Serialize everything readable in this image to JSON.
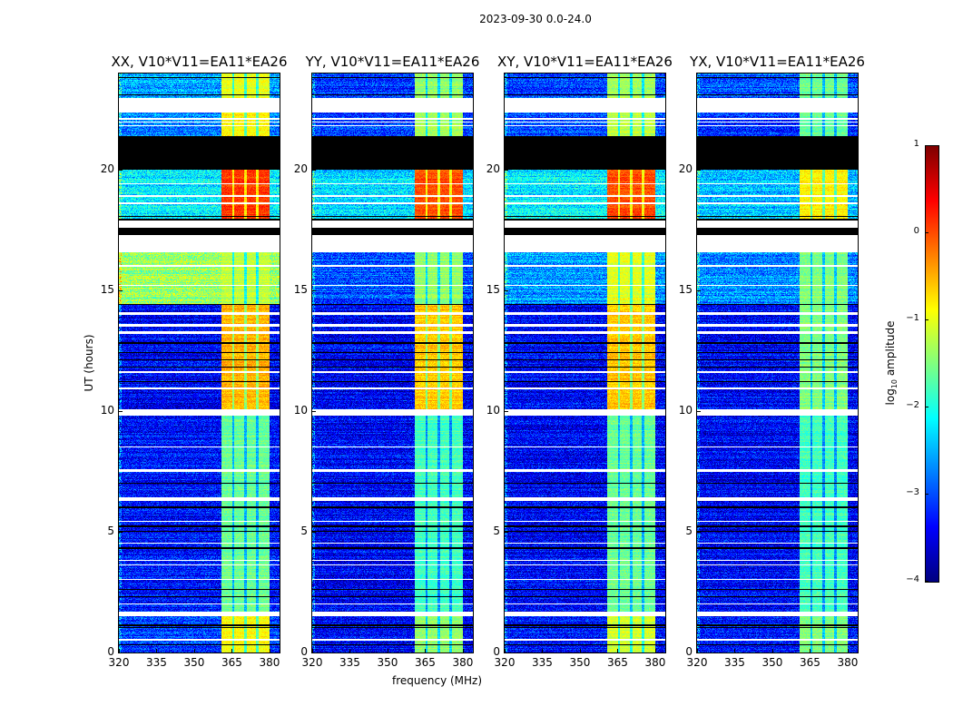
{
  "chart_data": {
    "type": "heatmap",
    "title": "2023-09-30 0.0-24.0",
    "xlabel": "frequency (MHz)",
    "ylabel": "UT (hours)",
    "colorbar_label_main": "log",
    "colorbar_label_sub": "10",
    "colorbar_label_rest": " amplitude",
    "colormap": "jet",
    "clim": [
      -4,
      1
    ],
    "colorbar_ticks": [
      -4,
      -3,
      -2,
      -1,
      0,
      1
    ],
    "colorbar_tick_labels": [
      "−4",
      "−3",
      "−2",
      "−1",
      "0",
      "1"
    ],
    "xlim": [
      320,
      384
    ],
    "ylim": [
      0,
      24
    ],
    "xticks": [
      320,
      335,
      350,
      365,
      380
    ],
    "xtick_labels": [
      "320",
      "335",
      "350",
      "365",
      "380"
    ],
    "yticks": [
      0,
      5,
      10,
      15,
      20
    ],
    "ytick_labels": [
      "0",
      "5",
      "10",
      "15",
      "20"
    ],
    "rfi_band_mhz": [
      361,
      380
    ],
    "band_dividers_mhz": [
      365.5,
      370.5,
      375.2
    ],
    "panels": [
      {
        "title": "XX, V10*V11=EA11*EA26",
        "segments": [
          {
            "ut": [
              0,
              1.5
            ],
            "background": -3.1,
            "band": -0.9
          },
          {
            "ut": [
              1.7,
              9.8
            ],
            "background": -3.3,
            "band": -1.6
          },
          {
            "ut": [
              10.1,
              14.4
            ],
            "background": -3.4,
            "band": -0.5
          },
          {
            "ut": [
              14.4,
              16.6
            ],
            "background": -1.4,
            "band": -1.2
          },
          {
            "ut": [
              18.0,
              20.0
            ],
            "background": -2.2,
            "band": 0.1
          },
          {
            "ut": [
              21.4,
              22.4
            ],
            "background": -2.7,
            "band": -0.8
          },
          {
            "ut": [
              23.0,
              24.0
            ],
            "background": -2.6,
            "band": -1.0
          }
        ]
      },
      {
        "title": "YY, V10*V11=EA11*EA26",
        "segments": [
          {
            "ut": [
              0,
              1.5
            ],
            "background": -3.4,
            "band": -1.4
          },
          {
            "ut": [
              1.7,
              9.8
            ],
            "background": -3.4,
            "band": -1.8
          },
          {
            "ut": [
              10.1,
              14.4
            ],
            "background": -3.4,
            "band": -0.6
          },
          {
            "ut": [
              14.4,
              16.6
            ],
            "background": -3.0,
            "band": -1.4
          },
          {
            "ut": [
              18.0,
              20.0
            ],
            "background": -2.3,
            "band": 0.0
          },
          {
            "ut": [
              21.4,
              22.4
            ],
            "background": -3.1,
            "band": -1.3
          },
          {
            "ut": [
              23.0,
              24.0
            ],
            "background": -3.1,
            "band": -1.4
          }
        ]
      },
      {
        "title": "XY, V10*V11=EA11*EA26",
        "segments": [
          {
            "ut": [
              0,
              1.5
            ],
            "background": -3.3,
            "band": -1.1
          },
          {
            "ut": [
              1.7,
              9.8
            ],
            "background": -3.4,
            "band": -1.6
          },
          {
            "ut": [
              10.1,
              14.4
            ],
            "background": -3.4,
            "band": -0.6
          },
          {
            "ut": [
              14.4,
              16.6
            ],
            "background": -2.6,
            "band": -1.0
          },
          {
            "ut": [
              18.0,
              20.0
            ],
            "background": -2.2,
            "band": 0.0
          },
          {
            "ut": [
              21.4,
              22.4
            ],
            "background": -3.0,
            "band": -1.2
          },
          {
            "ut": [
              23.0,
              24.0
            ],
            "background": -3.0,
            "band": -1.3
          }
        ]
      },
      {
        "title": "YX, V10*V11=EA11*EA26",
        "segments": [
          {
            "ut": [
              0,
              1.5
            ],
            "background": -3.3,
            "band": -1.5
          },
          {
            "ut": [
              1.7,
              9.8
            ],
            "background": -3.4,
            "band": -1.8
          },
          {
            "ut": [
              10.1,
              14.4
            ],
            "background": -3.4,
            "band": -1.5
          },
          {
            "ut": [
              14.4,
              16.6
            ],
            "background": -2.7,
            "band": -1.5
          },
          {
            "ut": [
              18.0,
              20.0
            ],
            "background": -2.4,
            "band": -0.8
          },
          {
            "ut": [
              21.4,
              22.4
            ],
            "background": -3.1,
            "band": -1.6
          },
          {
            "ut": [
              23.0,
              24.0
            ],
            "background": -3.0,
            "band": -1.6
          }
        ]
      }
    ],
    "blank_ut": [
      [
        1.5,
        1.7
      ],
      [
        9.8,
        10.1
      ],
      [
        16.6,
        17.3
      ],
      [
        17.6,
        17.9
      ],
      [
        22.4,
        23.0
      ],
      [
        0.5,
        0.55
      ],
      [
        2.0,
        2.05
      ],
      [
        3.0,
        3.05
      ],
      [
        3.6,
        3.65
      ],
      [
        3.8,
        3.85
      ],
      [
        4.5,
        4.55
      ],
      [
        5.4,
        5.45
      ],
      [
        6.3,
        6.45
      ],
      [
        7.5,
        7.6
      ],
      [
        8.5,
        8.55
      ],
      [
        10.9,
        11.0
      ],
      [
        11.6,
        11.65
      ],
      [
        13.2,
        13.3
      ],
      [
        13.5,
        13.6
      ],
      [
        14.0,
        14.1
      ],
      [
        15.2,
        15.25
      ],
      [
        16.0,
        16.05
      ],
      [
        18.6,
        18.65
      ],
      [
        18.9,
        18.95
      ],
      [
        19.4,
        19.45
      ],
      [
        21.8,
        21.85
      ],
      [
        21.95,
        22.0
      ],
      [
        22.1,
        22.15
      ]
    ],
    "flagged_ut": [
      [
        20.0,
        21.4
      ],
      [
        17.3,
        17.6
      ],
      [
        17.9,
        17.95
      ],
      [
        18.05,
        18.1
      ],
      [
        0.3,
        0.35
      ],
      [
        1.0,
        1.05
      ],
      [
        1.1,
        1.15
      ],
      [
        2.3,
        2.35
      ],
      [
        2.6,
        2.65
      ],
      [
        4.3,
        4.35
      ],
      [
        5.0,
        5.05
      ],
      [
        5.2,
        5.25
      ],
      [
        6.0,
        6.05
      ],
      [
        7.0,
        7.05
      ],
      [
        11.2,
        11.25
      ],
      [
        11.8,
        11.85
      ],
      [
        12.1,
        12.15
      ],
      [
        12.4,
        12.45
      ],
      [
        12.8,
        12.85
      ],
      [
        14.4,
        14.45
      ],
      [
        23.1,
        23.15
      ],
      [
        23.8,
        23.85
      ]
    ]
  }
}
